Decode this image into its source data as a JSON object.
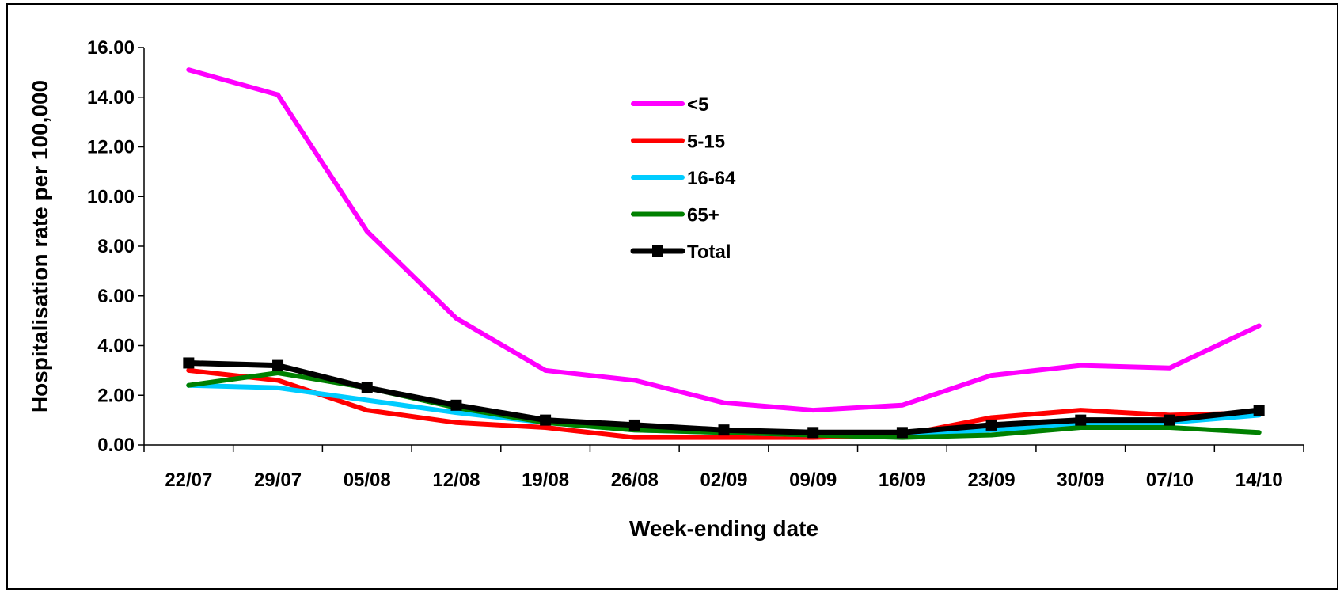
{
  "chart_data": {
    "type": "line",
    "title": "",
    "xlabel": "Week-ending date",
    "ylabel": "Hospitalisation rate per 100,000",
    "categories": [
      "22/07",
      "29/07",
      "05/08",
      "12/08",
      "19/08",
      "26/08",
      "02/09",
      "09/09",
      "16/09",
      "23/09",
      "30/09",
      "07/10",
      "14/10"
    ],
    "ylim": [
      0,
      16
    ],
    "yticks": [
      "0.00",
      "2.00",
      "4.00",
      "6.00",
      "8.00",
      "10.00",
      "12.00",
      "14.00",
      "16.00"
    ],
    "grid": false,
    "legend_position": "top-center",
    "series": [
      {
        "name": "<5",
        "color": "#FF00FF",
        "marker": "none",
        "values": [
          15.1,
          14.1,
          8.6,
          5.1,
          3.0,
          2.6,
          1.7,
          1.4,
          1.6,
          2.8,
          3.2,
          3.1,
          4.8
        ]
      },
      {
        "name": "5-15",
        "color": "#FF0000",
        "marker": "none",
        "values": [
          3.0,
          2.6,
          1.4,
          0.9,
          0.7,
          0.3,
          0.3,
          0.3,
          0.4,
          1.1,
          1.4,
          1.2,
          1.3
        ]
      },
      {
        "name": "16-64",
        "color": "#00CCFF",
        "marker": "none",
        "values": [
          2.4,
          2.3,
          1.8,
          1.3,
          0.9,
          0.6,
          0.5,
          0.4,
          0.4,
          0.6,
          0.8,
          0.9,
          1.2
        ]
      },
      {
        "name": "65+",
        "color": "#008000",
        "marker": "none",
        "values": [
          2.4,
          2.9,
          2.3,
          1.5,
          0.9,
          0.6,
          0.5,
          0.4,
          0.3,
          0.4,
          0.7,
          0.7,
          0.5
        ]
      },
      {
        "name": "Total",
        "color": "#000000",
        "marker": "square",
        "values": [
          3.3,
          3.2,
          2.3,
          1.6,
          1.0,
          0.8,
          0.6,
          0.5,
          0.5,
          0.8,
          1.0,
          1.0,
          1.4
        ]
      }
    ]
  }
}
